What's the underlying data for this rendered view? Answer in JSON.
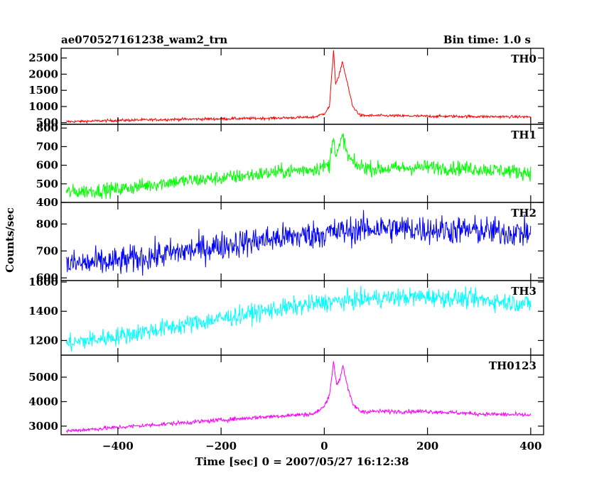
{
  "header": {
    "title": "ae070527161238_wam2_trn",
    "bin_time": "Bin time: 1.0 s"
  },
  "axes": {
    "xlabel": "Time [sec] 0 = 2007/05/27 16:12:38",
    "ylabel": "Counts/sec"
  },
  "chart_data": {
    "type": "line",
    "title": "ae070527161238_wam2_trn",
    "subtitle": "Bin time: 1.0 s",
    "xlabel": "Time [sec] 0 = 2007/05/27 16:12:38",
    "ylabel": "Counts/sec",
    "xlim": [
      -510,
      425
    ],
    "x_ticks": [
      -400,
      -200,
      0,
      200,
      400
    ],
    "x_range_data": [
      -500,
      400
    ],
    "bin_seconds": 1.0,
    "panels": [
      {
        "name": "TH0",
        "color": "#ff0000",
        "ylim": [
          450,
          2800
        ],
        "y_ticks": [
          500,
          1000,
          1500,
          2000,
          2500
        ],
        "x": [
          -500,
          -400,
          -300,
          -200,
          -100,
          -20,
          0,
          10,
          18,
          22,
          28,
          35,
          45,
          55,
          70,
          100,
          200,
          300,
          400
        ],
        "values": [
          530,
          570,
          600,
          620,
          640,
          670,
          780,
          1000,
          2750,
          1700,
          1900,
          2400,
          1700,
          1000,
          720,
          720,
          700,
          690,
          680
        ],
        "noise": 30
      },
      {
        "name": "TH1",
        "color": "#00ff00",
        "ylim": [
          400,
          820
        ],
        "y_ticks": [
          400,
          500,
          600,
          700,
          800
        ],
        "x": [
          -500,
          -400,
          -300,
          -200,
          -100,
          -20,
          10,
          18,
          22,
          30,
          36,
          45,
          60,
          100,
          200,
          300,
          400
        ],
        "values": [
          455,
          470,
          510,
          530,
          560,
          580,
          600,
          780,
          640,
          700,
          760,
          650,
          600,
          580,
          590,
          580,
          560
        ],
        "noise": 28
      },
      {
        "name": "TH2",
        "color": "#0000ff",
        "ylim": [
          590,
          880
        ],
        "y_ticks": [
          600,
          700,
          800
        ],
        "x": [
          -500,
          -400,
          -300,
          -200,
          -100,
          0,
          100,
          200,
          300,
          400
        ],
        "values": [
          650,
          660,
          690,
          720,
          745,
          765,
          785,
          780,
          775,
          765
        ],
        "noise": 38
      },
      {
        "name": "TH3",
        "color": "#00ffff",
        "ylim": [
          1100,
          1610
        ],
        "y_ticks": [
          1200,
          1400,
          1600
        ],
        "x": [
          -500,
          -400,
          -300,
          -200,
          -100,
          0,
          100,
          200,
          300,
          400
        ],
        "values": [
          1180,
          1230,
          1290,
          1350,
          1410,
          1460,
          1490,
          1500,
          1480,
          1450
        ],
        "noise": 45
      },
      {
        "name": "TH0123",
        "color": "#ff00ff",
        "ylim": [
          2650,
          5900
        ],
        "y_ticks": [
          3000,
          4000,
          5000
        ],
        "x": [
          -500,
          -400,
          -300,
          -200,
          -100,
          -20,
          0,
          10,
          18,
          24,
          30,
          36,
          45,
          55,
          70,
          100,
          200,
          300,
          400
        ],
        "values": [
          2800,
          2950,
          3100,
          3250,
          3400,
          3500,
          3800,
          4300,
          5600,
          4700,
          4900,
          5500,
          4600,
          3900,
          3600,
          3600,
          3600,
          3500,
          3450
        ],
        "noise": 60
      }
    ],
    "grid": false,
    "legend": "panel labels top-right"
  }
}
